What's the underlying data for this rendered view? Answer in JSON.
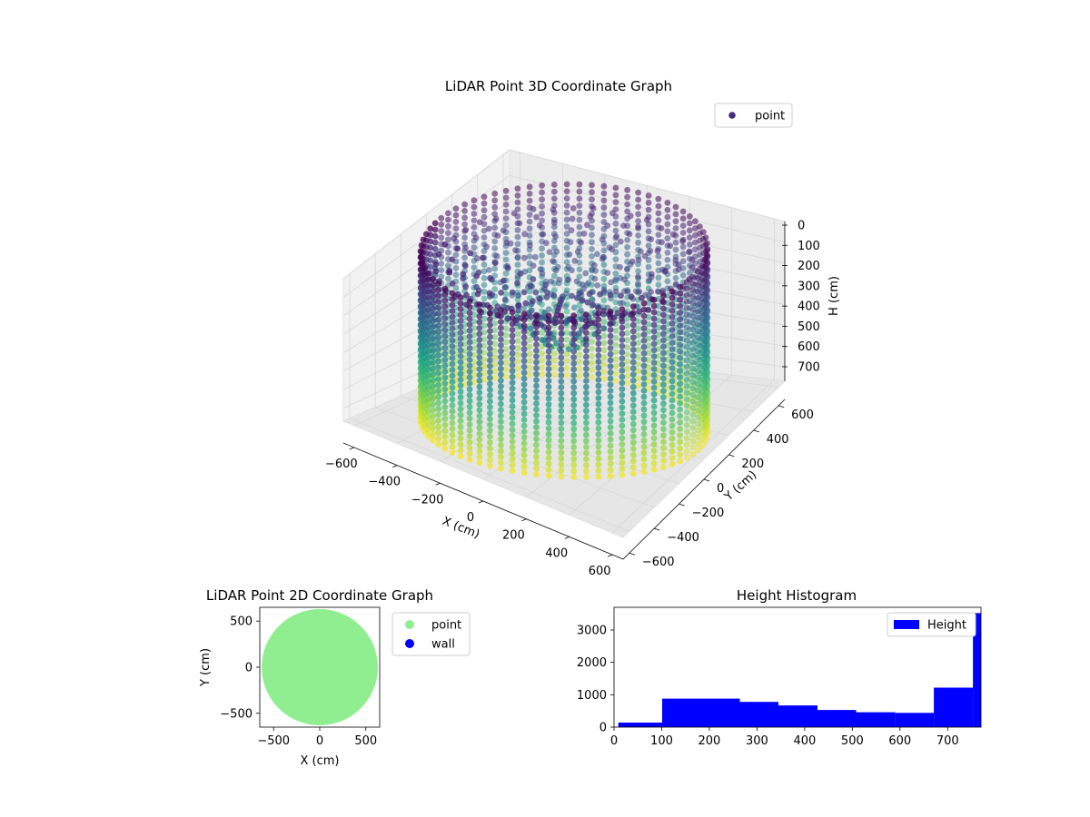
{
  "chart_data": [
    {
      "type": "scatter",
      "projection": "3d",
      "title": "LiDAR Point 3D Coordinate Graph",
      "xlabel": "X (cm)",
      "ylabel": "Y (cm)",
      "zlabel": "H (cm)",
      "xlim": [
        -650,
        650
      ],
      "ylim": [
        -650,
        650
      ],
      "zlim": [
        770,
        0
      ],
      "z_inverted": true,
      "xticks": [
        "−600",
        "−400",
        "−200",
        "0",
        "200",
        "400",
        "600"
      ],
      "yticks": [
        "−600",
        "−400",
        "−200",
        "0",
        "200",
        "400",
        "600"
      ],
      "zticks": [
        "0",
        "100",
        "200",
        "300",
        "400",
        "500",
        "600",
        "700"
      ],
      "colormap": "viridis (color by height)",
      "legend": {
        "entries": [
          "point"
        ],
        "placement": "top-right"
      },
      "grid": true,
      "series": [
        {
          "name": "point",
          "description_shape": "cylindrical wall of radius ≈ 580 cm, heights 0–770 cm",
          "radius": 580,
          "h_range": [
            0,
            770
          ],
          "columns": 72
        }
      ]
    },
    {
      "type": "scatter",
      "title": "LiDAR Point 2D Coordinate Graph",
      "xlabel": "X (cm)",
      "ylabel": "Y (cm)",
      "xlim": [
        -650,
        650
      ],
      "ylim": [
        -650,
        650
      ],
      "xticks": [
        "−500",
        "0",
        "500"
      ],
      "yticks": [
        "−500",
        "0",
        "500"
      ],
      "legend": {
        "entries": [
          "point",
          "wall"
        ],
        "placement": "outside-right"
      },
      "series": [
        {
          "name": "point",
          "color": "#90ee90",
          "shape": "filled disc",
          "radius": 630
        },
        {
          "name": "wall",
          "color": "#0000ff"
        }
      ]
    },
    {
      "type": "bar",
      "subtype": "histogram",
      "title": "Height Histogram",
      "xlim": [
        0,
        770
      ],
      "ylim": [
        0,
        3700
      ],
      "xticks": [
        "0",
        "100",
        "200",
        "300",
        "400",
        "500",
        "600",
        "700"
      ],
      "yticks": [
        "0",
        "1000",
        "2000",
        "3000"
      ],
      "legend": {
        "entries": [
          "Height"
        ],
        "placement": "top-right"
      },
      "series": [
        {
          "name": "Height",
          "color": "#0000ff",
          "bins": [
            {
              "start": 9,
              "end": 101,
              "count": 140
            },
            {
              "start": 101,
              "end": 264,
              "count": 880
            },
            {
              "start": 264,
              "end": 345,
              "count": 780
            },
            {
              "start": 345,
              "end": 427,
              "count": 670
            },
            {
              "start": 427,
              "end": 508,
              "count": 530
            },
            {
              "start": 508,
              "end": 590,
              "count": 460
            },
            {
              "start": 590,
              "end": 671,
              "count": 440
            },
            {
              "start": 671,
              "end": 753,
              "count": 1220
            },
            {
              "start": 753,
              "end": 770,
              "count": 3520
            }
          ]
        }
      ]
    }
  ]
}
